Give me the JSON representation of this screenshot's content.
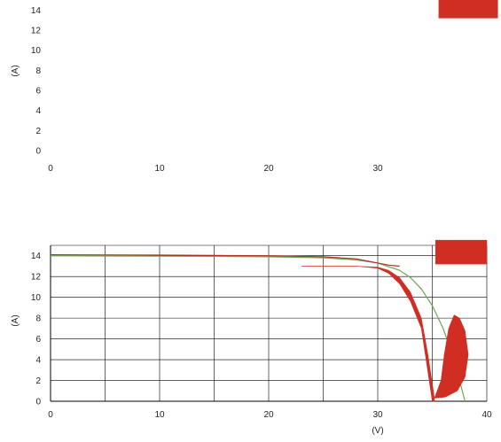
{
  "chart_data": [
    {
      "type": "line",
      "title": "",
      "xlabel": "",
      "ylabel": "(A)",
      "xlim": [
        0,
        40
      ],
      "ylim": [
        0,
        15
      ],
      "x_ticks": [
        0,
        10,
        20,
        30
      ],
      "y_ticks": [
        0,
        2,
        4,
        6,
        8,
        10,
        12,
        14
      ],
      "grid": false,
      "series": [
        {
          "color": "#d02e22",
          "style": "filled-region",
          "points": [
            [
              35.6,
              20
            ],
            [
              35.6,
              13.2
            ],
            [
              41,
              13.2
            ],
            [
              41,
              20
            ]
          ]
        }
      ]
    },
    {
      "type": "line",
      "title": "",
      "xlabel": "(V)",
      "ylabel": "(A)",
      "xlim": [
        0,
        40
      ],
      "ylim": [
        0,
        15
      ],
      "x_ticks": [
        0,
        10,
        20,
        30,
        40
      ],
      "y_ticks": [
        0,
        2,
        4,
        6,
        8,
        10,
        12,
        14
      ],
      "grid": true,
      "series": [
        {
          "color": "#6aa84f",
          "style": "line",
          "x": [
            0,
            5,
            10,
            15,
            20,
            25,
            28,
            30,
            32,
            33,
            34,
            35,
            36,
            37,
            37.5,
            38
          ],
          "y": [
            14,
            13.98,
            13.96,
            13.94,
            13.9,
            13.8,
            13.6,
            13.3,
            12.6,
            11.9,
            10.8,
            9.2,
            7.0,
            4.0,
            2.0,
            0
          ]
        },
        {
          "color": "#b5312a",
          "style": "line",
          "x": [
            0,
            5,
            10,
            15,
            20,
            25,
            28,
            30,
            31,
            32
          ],
          "y": [
            14.1,
            14.08,
            14.06,
            14.03,
            14.0,
            13.9,
            13.7,
            13.3,
            13.1,
            13.0
          ]
        },
        {
          "color": "#d02e22",
          "style": "filled-region",
          "points": [
            [
              23,
              13.0
            ],
            [
              28,
              13.0
            ],
            [
              30,
              12.8
            ],
            [
              31,
              12.3
            ],
            [
              32,
              11.3
            ],
            [
              33,
              9.6
            ],
            [
              34,
              7.0
            ],
            [
              35,
              0
            ],
            [
              35.2,
              0
            ],
            [
              35.2,
              0.3
            ],
            [
              34.6,
              4.5
            ],
            [
              34.0,
              8.0
            ],
            [
              33.0,
              10.5
            ],
            [
              32.0,
              11.9
            ],
            [
              31.0,
              12.6
            ],
            [
              30.0,
              12.9
            ],
            [
              28,
              13.0
            ]
          ]
        },
        {
          "color": "#d02e22",
          "style": "filled-region",
          "points": [
            [
              35.2,
              0.3
            ],
            [
              35.8,
              2.0
            ],
            [
              36.1,
              4.5
            ],
            [
              36.5,
              7.0
            ],
            [
              37.0,
              8.3
            ],
            [
              37.5,
              8.0
            ],
            [
              38.0,
              6.8
            ],
            [
              38.3,
              4.5
            ],
            [
              38.0,
              2.3
            ],
            [
              37.3,
              1.0
            ],
            [
              36.2,
              0.4
            ]
          ]
        },
        {
          "color": "#d02e22",
          "style": "filled-region",
          "points": [
            [
              35.3,
              13.2
            ],
            [
              35.3,
              15.5
            ],
            [
              40,
              15.5
            ],
            [
              40,
              13.2
            ]
          ]
        }
      ]
    }
  ]
}
